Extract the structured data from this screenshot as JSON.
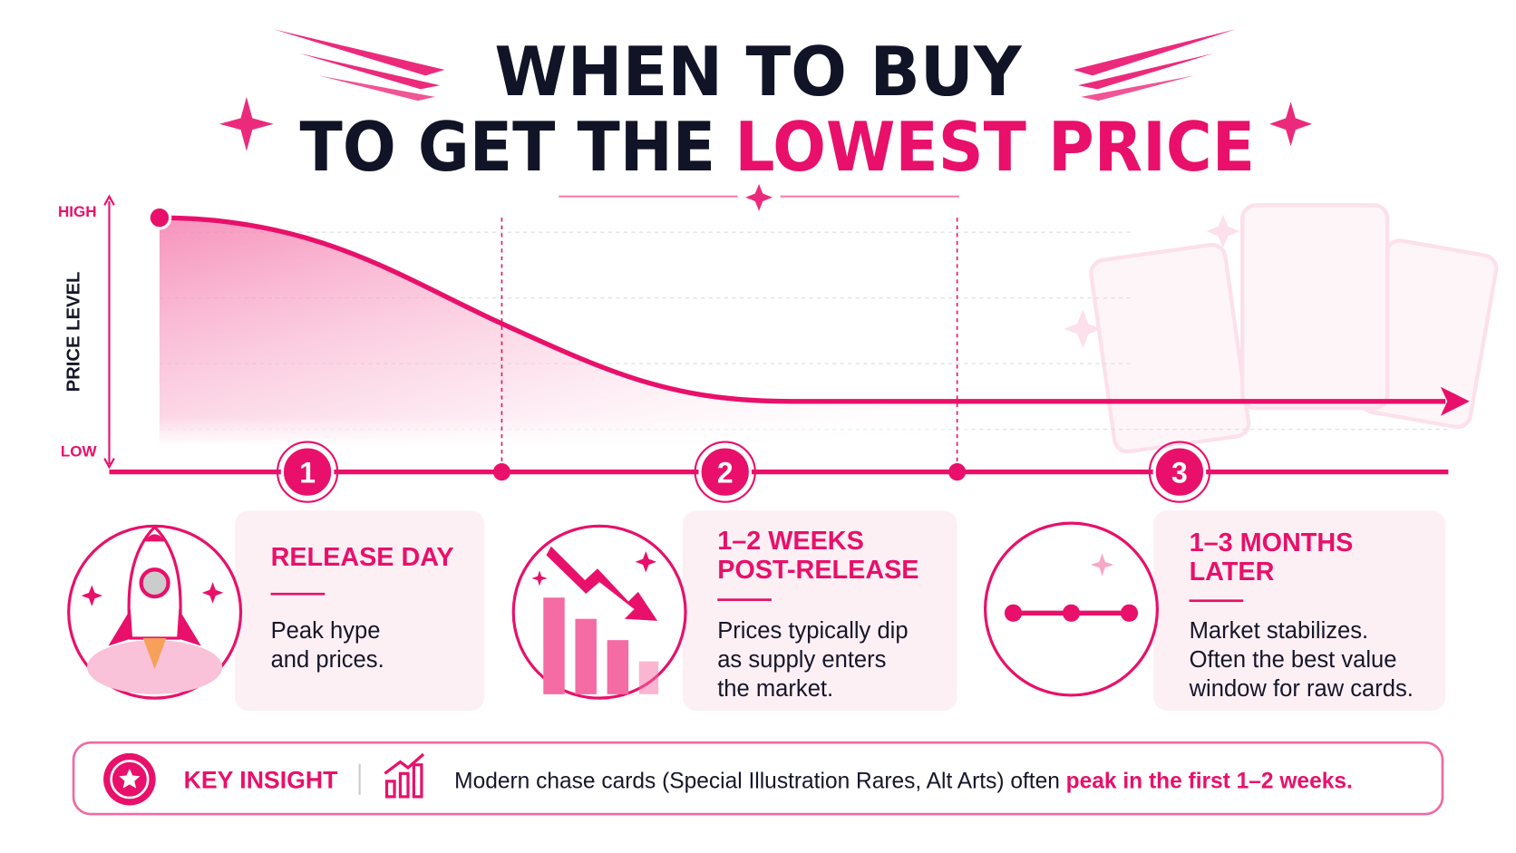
{
  "header": {
    "title_line1": "WHEN TO BUY",
    "title_line2_plain": "TO GET THE",
    "title_line2_highlight": "LOWEST PRICE"
  },
  "axis": {
    "y_label": "PRICE LEVEL",
    "high": "HIGH",
    "low": "LOW"
  },
  "stages": [
    {
      "number": "1",
      "title": [
        "RELEASE DAY"
      ],
      "description": [
        "Peak hype",
        "and prices."
      ]
    },
    {
      "number": "2",
      "title": [
        "1–2 WEEKS",
        "POST-RELEASE"
      ],
      "description": [
        "Prices typically dip",
        "as supply enters",
        "the market."
      ]
    },
    {
      "number": "3",
      "title": [
        "1–3 MONTHS",
        "LATER"
      ],
      "description": [
        "Market stabilizes.",
        "Often the best value",
        "window for raw cards."
      ]
    }
  ],
  "insight": {
    "label": "KEY INSIGHT",
    "text": "Modern chase cards (Special Illustration Rares, Alt Arts) often ",
    "highlight": "peak in the first 1–2 weeks."
  }
}
